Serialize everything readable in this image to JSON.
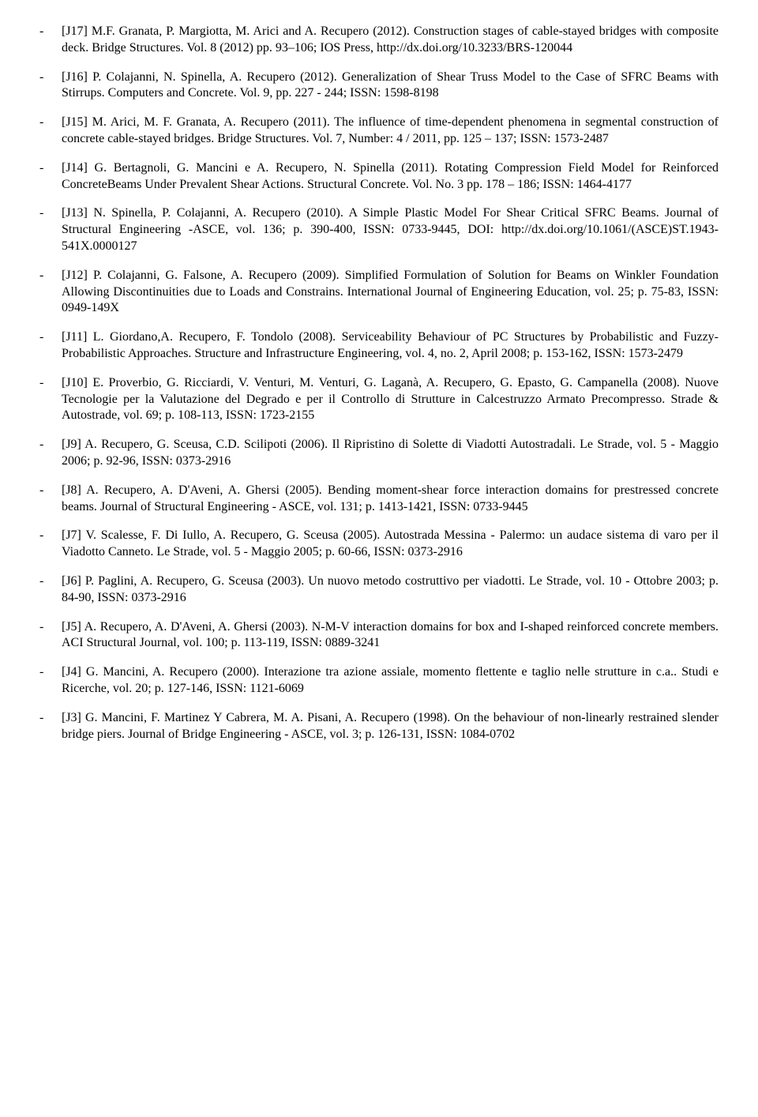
{
  "entries": [
    {
      "dash": "-",
      "text": "[J17] M.F. Granata, P. Margiotta, M. Arici and A. Recupero (2012). Construction stages of cable-stayed bridges with composite deck. Bridge Structures. Vol. 8 (2012) pp. 93–106; IOS Press, http://dx.doi.org/10.3233/BRS-120044"
    },
    {
      "dash": "-",
      "text": "[J16] P. Colajanni, N. Spinella, A. Recupero (2012).  Generalization of Shear Truss Model to the Case of SFRC Beams with Stirrups. Computers and Concrete. Vol. 9, pp. 227 - 244; ISSN: 1598-8198"
    },
    {
      "dash": "-",
      "text": "[J15] M. Arici, M. F. Granata, A. Recupero (2011). The influence of time-dependent phenomena in segmental construction of concrete cable-stayed bridges. Bridge Structures. Vol. 7, Number: 4 / 2011, pp. 125 – 137; ISSN: 1573-2487"
    },
    {
      "dash": "-",
      "text": "[J14] G. Bertagnoli, G. Mancini e A. Recupero, N. Spinella (2011). Rotating Compression Field Model for Reinforced ConcreteBeams Under Prevalent Shear Actions. Structural Concrete. Vol. No. 3 pp. 178 – 186; ISSN: 1464-4177"
    },
    {
      "dash": "-",
      "text": "[J13] N. Spinella, P. Colajanni, A. Recupero (2010). A Simple Plastic Model For Shear Critical SFRC Beams. Journal of Structural Engineering -ASCE, vol. 136; p. 390-400, ISSN: 0733-9445, DOI: http://dx.doi.org/10.1061/(ASCE)ST.1943-541X.0000127"
    },
    {
      "dash": "-",
      "text": "[J12] P. Colajanni, G. Falsone, A. Recupero (2009). Simplified Formulation of Solution for Beams on Winkler Foundation Allowing Discontinuities due to Loads and Constrains. International Journal of Engineering Education, vol. 25; p. 75-83, ISSN: 0949-149X"
    },
    {
      "dash": "-",
      "text": "[J11] L. Giordano,A. Recupero, F. Tondolo (2008). Serviceability Behaviour of PC Structures by Probabilistic and Fuzzy-Probabilistic Approaches. Structure and Infrastructure Engineering, vol. 4, no. 2, April 2008; p. 153-162, ISSN: 1573-2479"
    },
    {
      "dash": "-",
      "text": "[J10] E. Proverbio, G. Ricciardi, V. Venturi, M. Venturi, G. Laganà, A. Recupero, G. Epasto, G. Campanella (2008). Nuove Tecnologie per la Valutazione del Degrado e per il Controllo di Strutture in Calcestruzzo Armato Precompresso. Strade & Autostrade, vol. 69; p. 108-113, ISSN: 1723-2155"
    },
    {
      "dash": "-",
      "text": "[J9] A. Recupero, G. Sceusa, C.D. Scilipoti (2006). Il Ripristino di Solette di Viadotti Autostradali. Le Strade, vol. 5 - Maggio 2006; p. 92-96, ISSN: 0373-2916"
    },
    {
      "dash": "-",
      "text": "[J8] A. Recupero, A. D'Aveni, A. Ghersi (2005). Bending moment-shear force interaction domains for prestressed concrete beams. Journal of Structural Engineering - ASCE, vol. 131; p. 1413-1421, ISSN: 0733-9445"
    },
    {
      "dash": "-",
      "text": "[J7]  V. Scalesse, F. Di Iullo, A. Recupero, G. Sceusa (2005). Autostrada Messina - Palermo: un audace sistema di varo per il Viadotto Canneto. Le Strade, vol. 5 - Maggio 2005; p. 60-66, ISSN: 0373-2916"
    },
    {
      "dash": "-",
      "text": "[J6]  P. Paglini, A. Recupero, G. Sceusa (2003). Un nuovo metodo costruttivo per viadotti. Le Strade, vol. 10 - Ottobre 2003; p. 84-90, ISSN: 0373-2916"
    },
    {
      "dash": "-",
      "text": "[J5]  A. Recupero, A. D'Aveni, A. Ghersi (2003). N-M-V interaction domains for box and I-shaped reinforced concrete members. ACI Structural Journal, vol. 100; p. 113-119, ISSN: 0889-3241"
    },
    {
      "dash": "-",
      "text": "[J4]  G. Mancini, A. Recupero (2000). Interazione tra azione assiale, momento flettente e taglio nelle strutture in c.a.. Studi e Ricerche, vol. 20; p. 127-146, ISSN: 1121-6069"
    },
    {
      "dash": "-",
      "text": "[J3]   G. Mancini, F. Martinez Y Cabrera, M. A. Pisani, A. Recupero (1998). On the behaviour of non-linearly restrained slender bridge piers. Journal of Bridge Engineering - ASCE, vol. 3; p. 126-131, ISSN: 1084-0702"
    }
  ]
}
